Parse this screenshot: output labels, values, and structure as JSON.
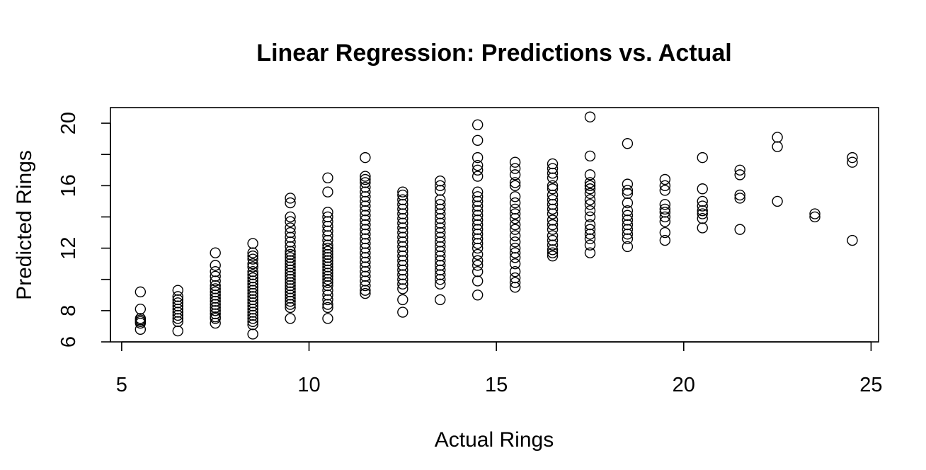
{
  "chart_data": {
    "type": "scatter",
    "title": "Linear Regression: Predictions vs. Actual",
    "xlabel": "Actual Rings",
    "ylabel": "Predicted Rings",
    "xlim": [
      4.7,
      25.2
    ],
    "ylim": [
      6,
      21
    ],
    "x_ticks": [
      5,
      10,
      15,
      20,
      25
    ],
    "y_ticks": [
      6,
      8,
      12,
      16,
      20
    ],
    "y_minor_ticks": [
      10,
      14,
      18
    ],
    "grid": false,
    "marker": "open-circle",
    "color": "#000000",
    "groups": [
      {
        "x": 5.5,
        "y": [
          9.2,
          8.1,
          7.5,
          7.4,
          7.3,
          7.2,
          6.8
        ]
      },
      {
        "x": 6.5,
        "y": [
          9.3,
          8.9,
          8.7,
          8.5,
          8.3,
          8.1,
          7.9,
          7.7,
          7.5,
          7.3,
          6.7
        ]
      },
      {
        "x": 7.5,
        "y": [
          11.7,
          10.9,
          10.5,
          10.2,
          9.9,
          9.6,
          9.4,
          9.2,
          9.0,
          8.8,
          8.6,
          8.4,
          8.2,
          8.0,
          7.8,
          7.6,
          7.5,
          7.2
        ]
      },
      {
        "x": 8.5,
        "y": [
          12.3,
          11.7,
          11.5,
          11.3,
          11.0,
          10.8,
          10.5,
          10.3,
          10.1,
          9.9,
          9.7,
          9.5,
          9.3,
          9.1,
          8.9,
          8.7,
          8.5,
          8.3,
          8.1,
          7.9,
          7.7,
          7.5,
          7.3,
          7.1,
          6.5
        ]
      },
      {
        "x": 9.5,
        "y": [
          15.2,
          14.9,
          14.0,
          13.7,
          13.3,
          13.0,
          12.7,
          12.4,
          12.1,
          11.8,
          11.6,
          11.4,
          11.2,
          11.0,
          10.8,
          10.6,
          10.4,
          10.2,
          10.0,
          9.8,
          9.6,
          9.4,
          9.2,
          9.0,
          8.8,
          8.6,
          8.4,
          8.2,
          7.5
        ]
      },
      {
        "x": 10.5,
        "y": [
          16.5,
          15.6,
          14.3,
          14.0,
          13.7,
          13.4,
          13.1,
          12.8,
          12.5,
          12.2,
          12.0,
          11.8,
          11.6,
          11.4,
          11.2,
          11.0,
          10.8,
          10.6,
          10.4,
          10.2,
          10.0,
          9.8,
          9.6,
          9.3,
          9.0,
          8.7,
          8.4,
          8.2,
          7.5
        ]
      },
      {
        "x": 11.5,
        "y": [
          17.8,
          16.6,
          16.4,
          16.2,
          15.9,
          15.6,
          15.3,
          15.0,
          14.7,
          14.4,
          14.1,
          13.8,
          13.5,
          13.2,
          12.9,
          12.6,
          12.3,
          12.0,
          11.7,
          11.4,
          11.1,
          10.8,
          10.5,
          10.2,
          9.9,
          9.6,
          9.3,
          9.1
        ]
      },
      {
        "x": 12.5,
        "y": [
          15.6,
          15.4,
          15.1,
          14.8,
          14.5,
          14.2,
          13.9,
          13.6,
          13.3,
          13.0,
          12.7,
          12.4,
          12.1,
          11.8,
          11.5,
          11.2,
          10.9,
          10.6,
          10.3,
          10.0,
          9.7,
          9.4,
          8.7,
          7.9
        ]
      },
      {
        "x": 13.5,
        "y": [
          16.3,
          16.0,
          15.7,
          15.1,
          14.8,
          14.5,
          14.2,
          13.9,
          13.6,
          13.3,
          13.0,
          12.7,
          12.4,
          12.1,
          11.8,
          11.5,
          11.2,
          10.9,
          10.6,
          10.3,
          10.0,
          9.7,
          8.7
        ]
      },
      {
        "x": 14.5,
        "y": [
          19.9,
          18.9,
          17.8,
          17.3,
          17.0,
          16.6,
          15.6,
          15.3,
          15.0,
          14.7,
          14.4,
          14.1,
          13.8,
          13.5,
          13.2,
          12.9,
          12.6,
          12.3,
          12.0,
          11.6,
          11.2,
          10.9,
          10.5,
          9.9,
          9.0
        ]
      },
      {
        "x": 15.5,
        "y": [
          17.5,
          17.1,
          16.7,
          16.2,
          16.0,
          15.3,
          14.9,
          14.5,
          14.2,
          13.9,
          13.5,
          13.2,
          12.8,
          12.4,
          12.0,
          11.7,
          11.4,
          11.0,
          10.5,
          10.1,
          9.8,
          9.5
        ]
      },
      {
        "x": 16.5,
        "y": [
          17.4,
          17.1,
          16.8,
          16.5,
          16.0,
          15.8,
          15.4,
          15.1,
          14.8,
          14.5,
          14.2,
          13.8,
          13.5,
          13.2,
          12.8,
          12.5,
          12.2,
          11.9,
          11.7,
          11.5
        ]
      },
      {
        "x": 17.5,
        "y": [
          20.4,
          17.9,
          16.7,
          16.2,
          16.0,
          15.8,
          15.5,
          15.1,
          14.8,
          14.4,
          14.0,
          13.5,
          13.2,
          12.9,
          12.6,
          12.2,
          11.7
        ]
      },
      {
        "x": 18.5,
        "y": [
          18.7,
          16.1,
          15.7,
          15.5,
          14.9,
          14.4,
          14.1,
          13.8,
          13.5,
          13.2,
          12.9,
          12.6,
          12.1
        ]
      },
      {
        "x": 19.5,
        "y": [
          16.4,
          16.0,
          15.7,
          14.8,
          14.5,
          14.3,
          14.0,
          13.7,
          13.0,
          12.5
        ]
      },
      {
        "x": 20.5,
        "y": [
          17.8,
          15.8,
          15.0,
          14.7,
          14.4,
          14.2,
          13.9,
          13.3
        ]
      },
      {
        "x": 21.5,
        "y": [
          17.0,
          16.7,
          15.4,
          15.2,
          13.2
        ]
      },
      {
        "x": 22.5,
        "y": [
          19.1,
          18.5,
          15.0
        ]
      },
      {
        "x": 23.5,
        "y": [
          14.2,
          14.0
        ]
      },
      {
        "x": 24.5,
        "y": [
          17.8,
          17.5,
          12.5
        ]
      }
    ]
  }
}
